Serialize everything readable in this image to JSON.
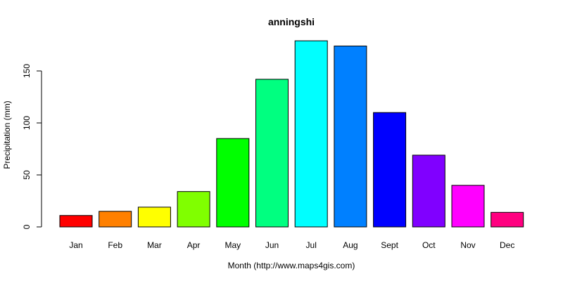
{
  "chart_data": {
    "type": "bar",
    "title": "anningshi",
    "xlabel": "Month (http://www.maps4gis.com)",
    "ylabel": "Precipitation (mm)",
    "categories": [
      "Jan",
      "Feb",
      "Mar",
      "Apr",
      "May",
      "Jun",
      "Jul",
      "Aug",
      "Sept",
      "Oct",
      "Nov",
      "Dec"
    ],
    "values": [
      11,
      15,
      19,
      34,
      85,
      142,
      179,
      174,
      110,
      69,
      40,
      14
    ],
    "colors": [
      "#FF0000",
      "#FF8000",
      "#FFFF00",
      "#80FF00",
      "#00FF00",
      "#00FF80",
      "#00FFFF",
      "#0080FF",
      "#0000FF",
      "#8000FF",
      "#FF00FF",
      "#FF0080"
    ],
    "ylim": [
      0,
      180
    ],
    "yticks": [
      0,
      50,
      100,
      150
    ],
    "grid": false,
    "legend": "none"
  }
}
